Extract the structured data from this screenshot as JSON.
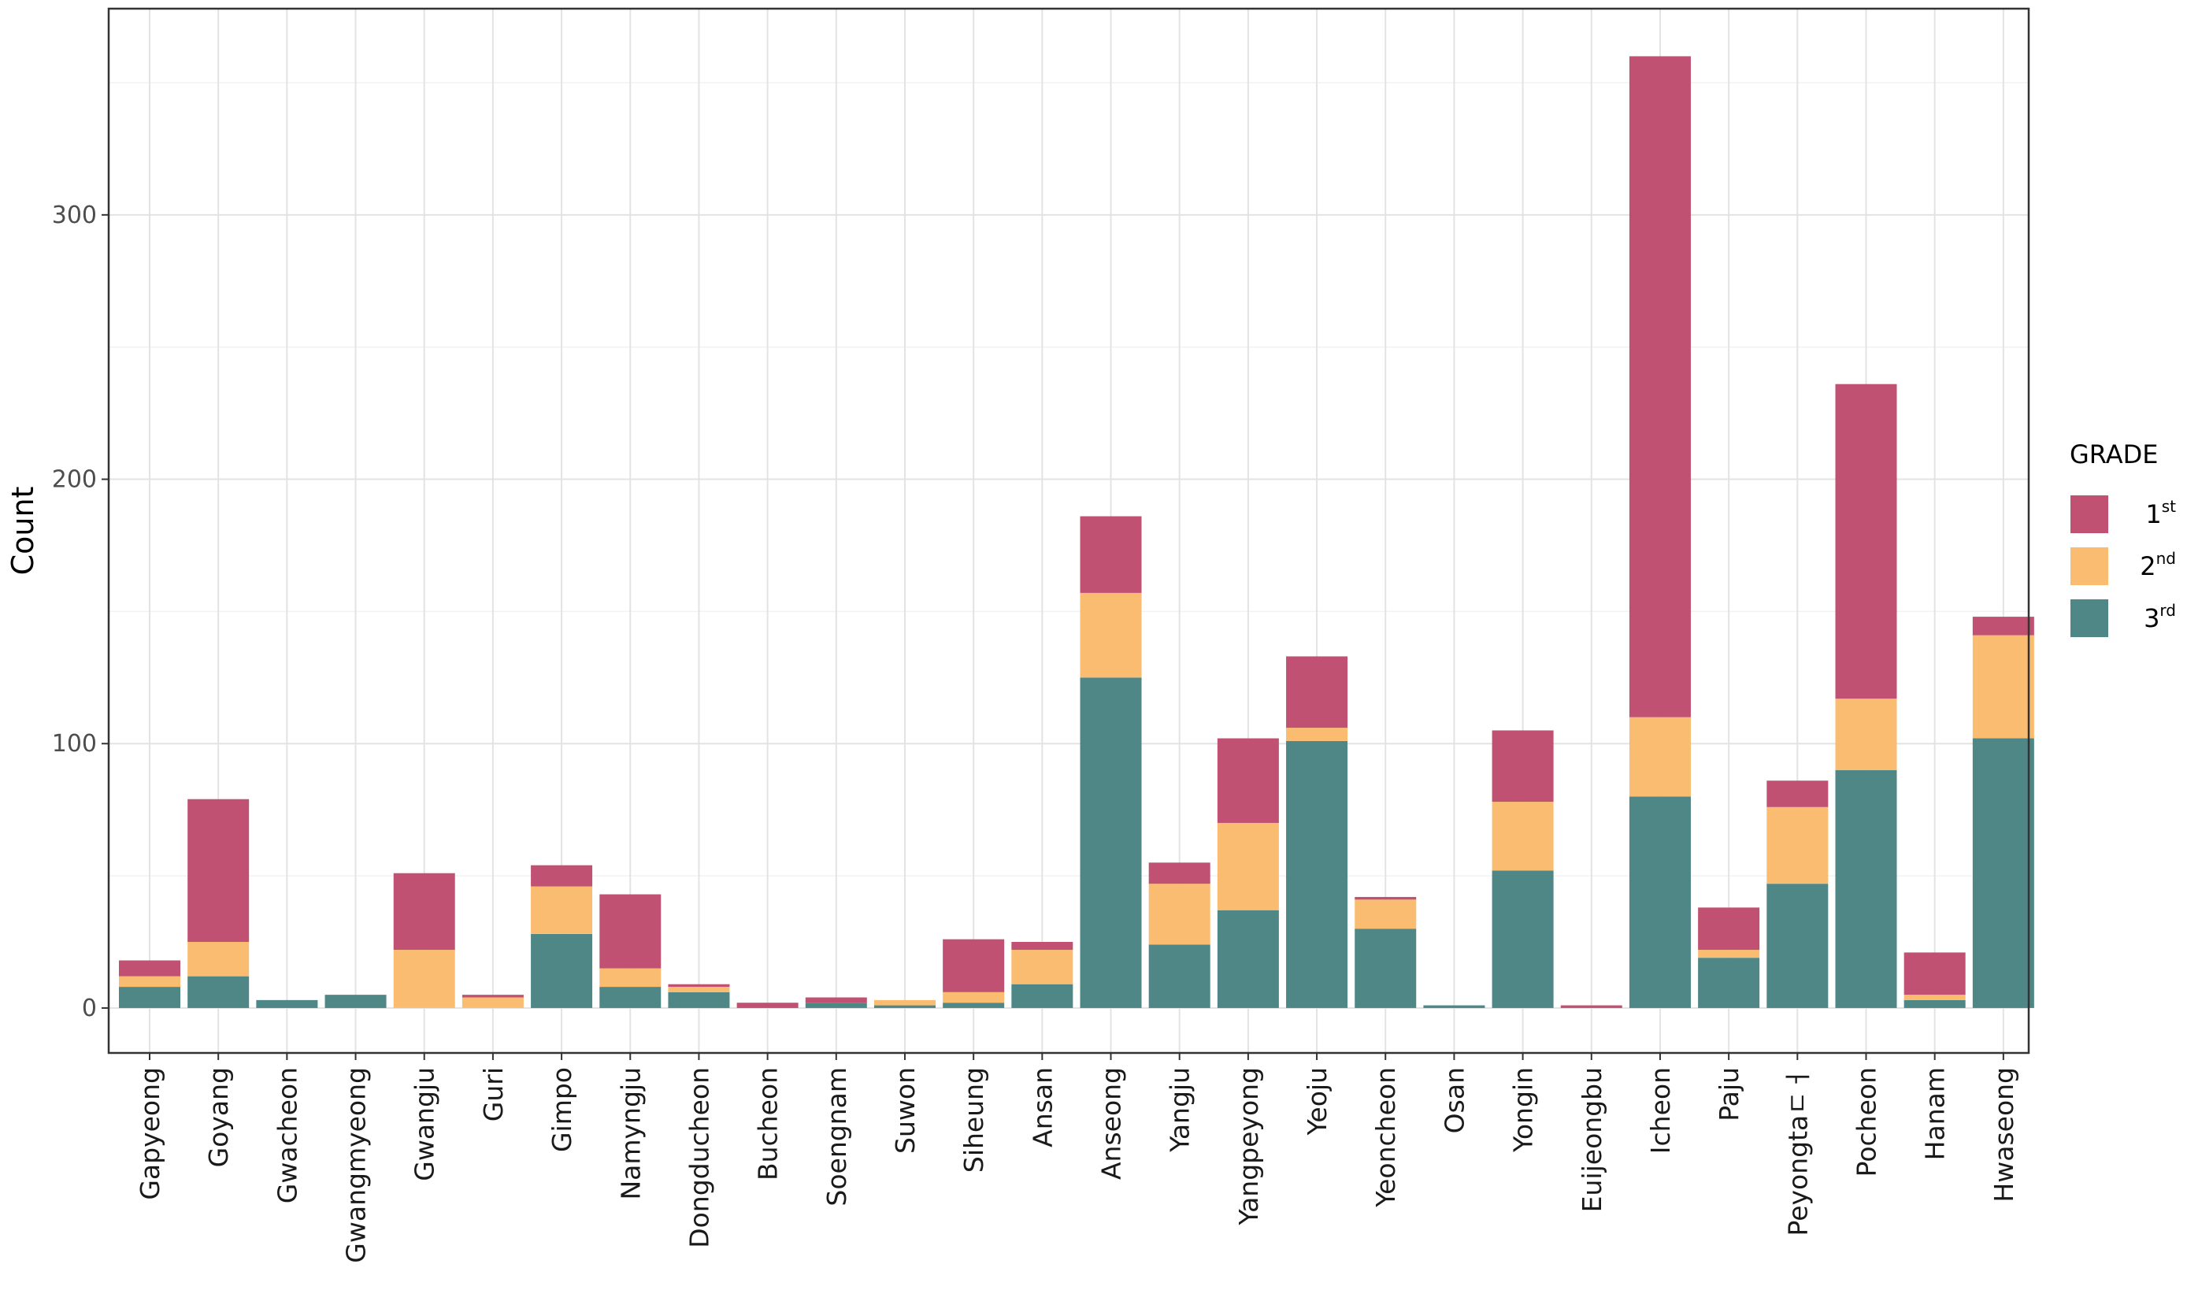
{
  "chart_data": {
    "type": "bar",
    "stacked": true,
    "title": "",
    "xlabel": "",
    "ylabel": "Count",
    "ylim": [
      -17,
      378
    ],
    "yticks": [
      0,
      100,
      200,
      300
    ],
    "grid": true,
    "categories": [
      "Gapyeong",
      "Goyang",
      "Gwacheon",
      "Gwangmyeong",
      "Gwangju",
      "Guri",
      "Gimpo",
      "Namyngju",
      "Dongducheon",
      "Bucheon",
      "Soengnam",
      "Suwon",
      "Siheung",
      "Ansan",
      "Anseong",
      "Yangju",
      "Yangpeyong",
      "Yeoju",
      "Yeoncheon",
      "Osan",
      "Yongin",
      "Euijeongbu",
      "Icheon",
      "Paju",
      "Peyongtaㄷㅓ",
      "Pocheon",
      "Hanam",
      "Hwaseong"
    ],
    "series": [
      {
        "name": "3rd",
        "color": "#4f8686",
        "values": [
          8,
          12,
          3,
          5,
          0,
          0,
          28,
          8,
          6,
          0,
          2,
          1,
          2,
          9,
          125,
          24,
          37,
          101,
          30,
          1,
          52,
          0,
          80,
          19,
          47,
          90,
          3,
          102
        ]
      },
      {
        "name": "2nd",
        "color": "#f9bc70",
        "values": [
          4,
          13,
          0,
          0,
          22,
          4,
          18,
          7,
          2,
          0,
          0,
          2,
          4,
          13,
          32,
          23,
          33,
          5,
          11,
          0,
          26,
          0,
          30,
          3,
          29,
          27,
          2,
          39
        ]
      },
      {
        "name": "1st",
        "color": "#c15173",
        "values": [
          6,
          54,
          0,
          0,
          29,
          1,
          8,
          28,
          1,
          2,
          2,
          0,
          20,
          3,
          29,
          8,
          32,
          27,
          1,
          0,
          27,
          1,
          250,
          16,
          10,
          119,
          16,
          7
        ]
      }
    ],
    "legend": {
      "title": "GRADE",
      "position": "right",
      "entries": [
        {
          "base": "1",
          "sup": "st",
          "color": "#c15173"
        },
        {
          "base": "2",
          "sup": "nd",
          "color": "#f9bc70"
        },
        {
          "base": "3",
          "sup": "rd",
          "color": "#4f8686"
        }
      ]
    }
  }
}
